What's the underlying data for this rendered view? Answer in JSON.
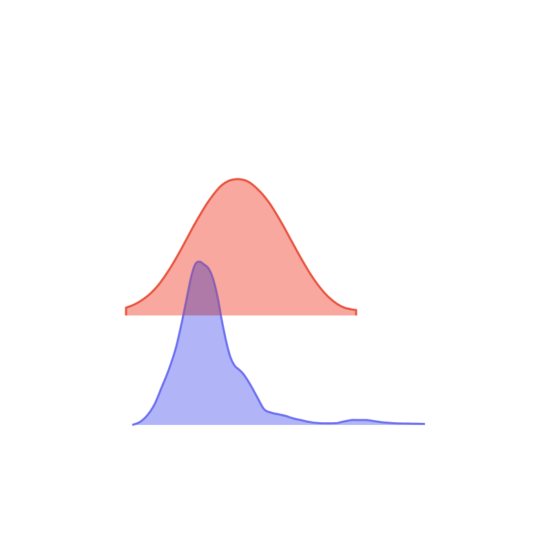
{
  "chart_data": {
    "type": "area",
    "chart_kind": "ridgeline-density",
    "title": "",
    "xlabel": "",
    "ylabel": "",
    "grid": false,
    "legend": "none",
    "axes_visible": false,
    "series": [
      {
        "name": "",
        "color": "#e8513d",
        "fill": "#f8a89e",
        "x": [
          0,
          0.02,
          0.05,
          0.08,
          0.11,
          0.14,
          0.17,
          0.2,
          0.23,
          0.26,
          0.29,
          0.32,
          0.35,
          0.38,
          0.41,
          0.44,
          0.47,
          0.5,
          0.53,
          0.56,
          0.59,
          0.62,
          0.65,
          0.68,
          0.71,
          0.74,
          0.77,
          0.8,
          0.83,
          0.86,
          0.89,
          0.92,
          0.95,
          0.98,
          1.0
        ],
        "values": [
          0.048,
          0.057,
          0.077,
          0.104,
          0.139,
          0.185,
          0.242,
          0.307,
          0.38,
          0.457,
          0.536,
          0.61,
          0.679,
          0.738,
          0.787,
          0.817,
          0.83,
          0.83,
          0.817,
          0.786,
          0.744,
          0.692,
          0.627,
          0.555,
          0.478,
          0.401,
          0.326,
          0.256,
          0.194,
          0.142,
          0.1,
          0.068,
          0.047,
          0.037,
          0.033
        ]
      },
      {
        "name": "",
        "color": "#6a6ef0",
        "fill": "#aeb2f8",
        "x": [
          0,
          0.025,
          0.05,
          0.075,
          0.1,
          0.125,
          0.15,
          0.175,
          0.2,
          0.215,
          0.23,
          0.245,
          0.26,
          0.275,
          0.29,
          0.305,
          0.32,
          0.335,
          0.35,
          0.365,
          0.38,
          0.4,
          0.425,
          0.45,
          0.475,
          0.5,
          0.525,
          0.55,
          0.575,
          0.6,
          0.625,
          0.65,
          0.675,
          0.7,
          0.725,
          0.75,
          0.775,
          0.8,
          0.825,
          0.85,
          0.875,
          0.9,
          0.925,
          0.95,
          0.975,
          1.0
        ],
        "values": [
          0.0,
          0.017,
          0.056,
          0.122,
          0.228,
          0.339,
          0.478,
          0.676,
          0.895,
          0.983,
          1.0,
          0.983,
          0.96,
          0.9,
          0.795,
          0.649,
          0.518,
          0.417,
          0.363,
          0.339,
          0.311,
          0.257,
          0.177,
          0.097,
          0.075,
          0.065,
          0.055,
          0.04,
          0.03,
          0.02,
          0.013,
          0.01,
          0.01,
          0.012,
          0.022,
          0.03,
          0.03,
          0.03,
          0.024,
          0.017,
          0.013,
          0.01,
          0.009,
          0.008,
          0.007,
          0.006
        ]
      }
    ]
  }
}
